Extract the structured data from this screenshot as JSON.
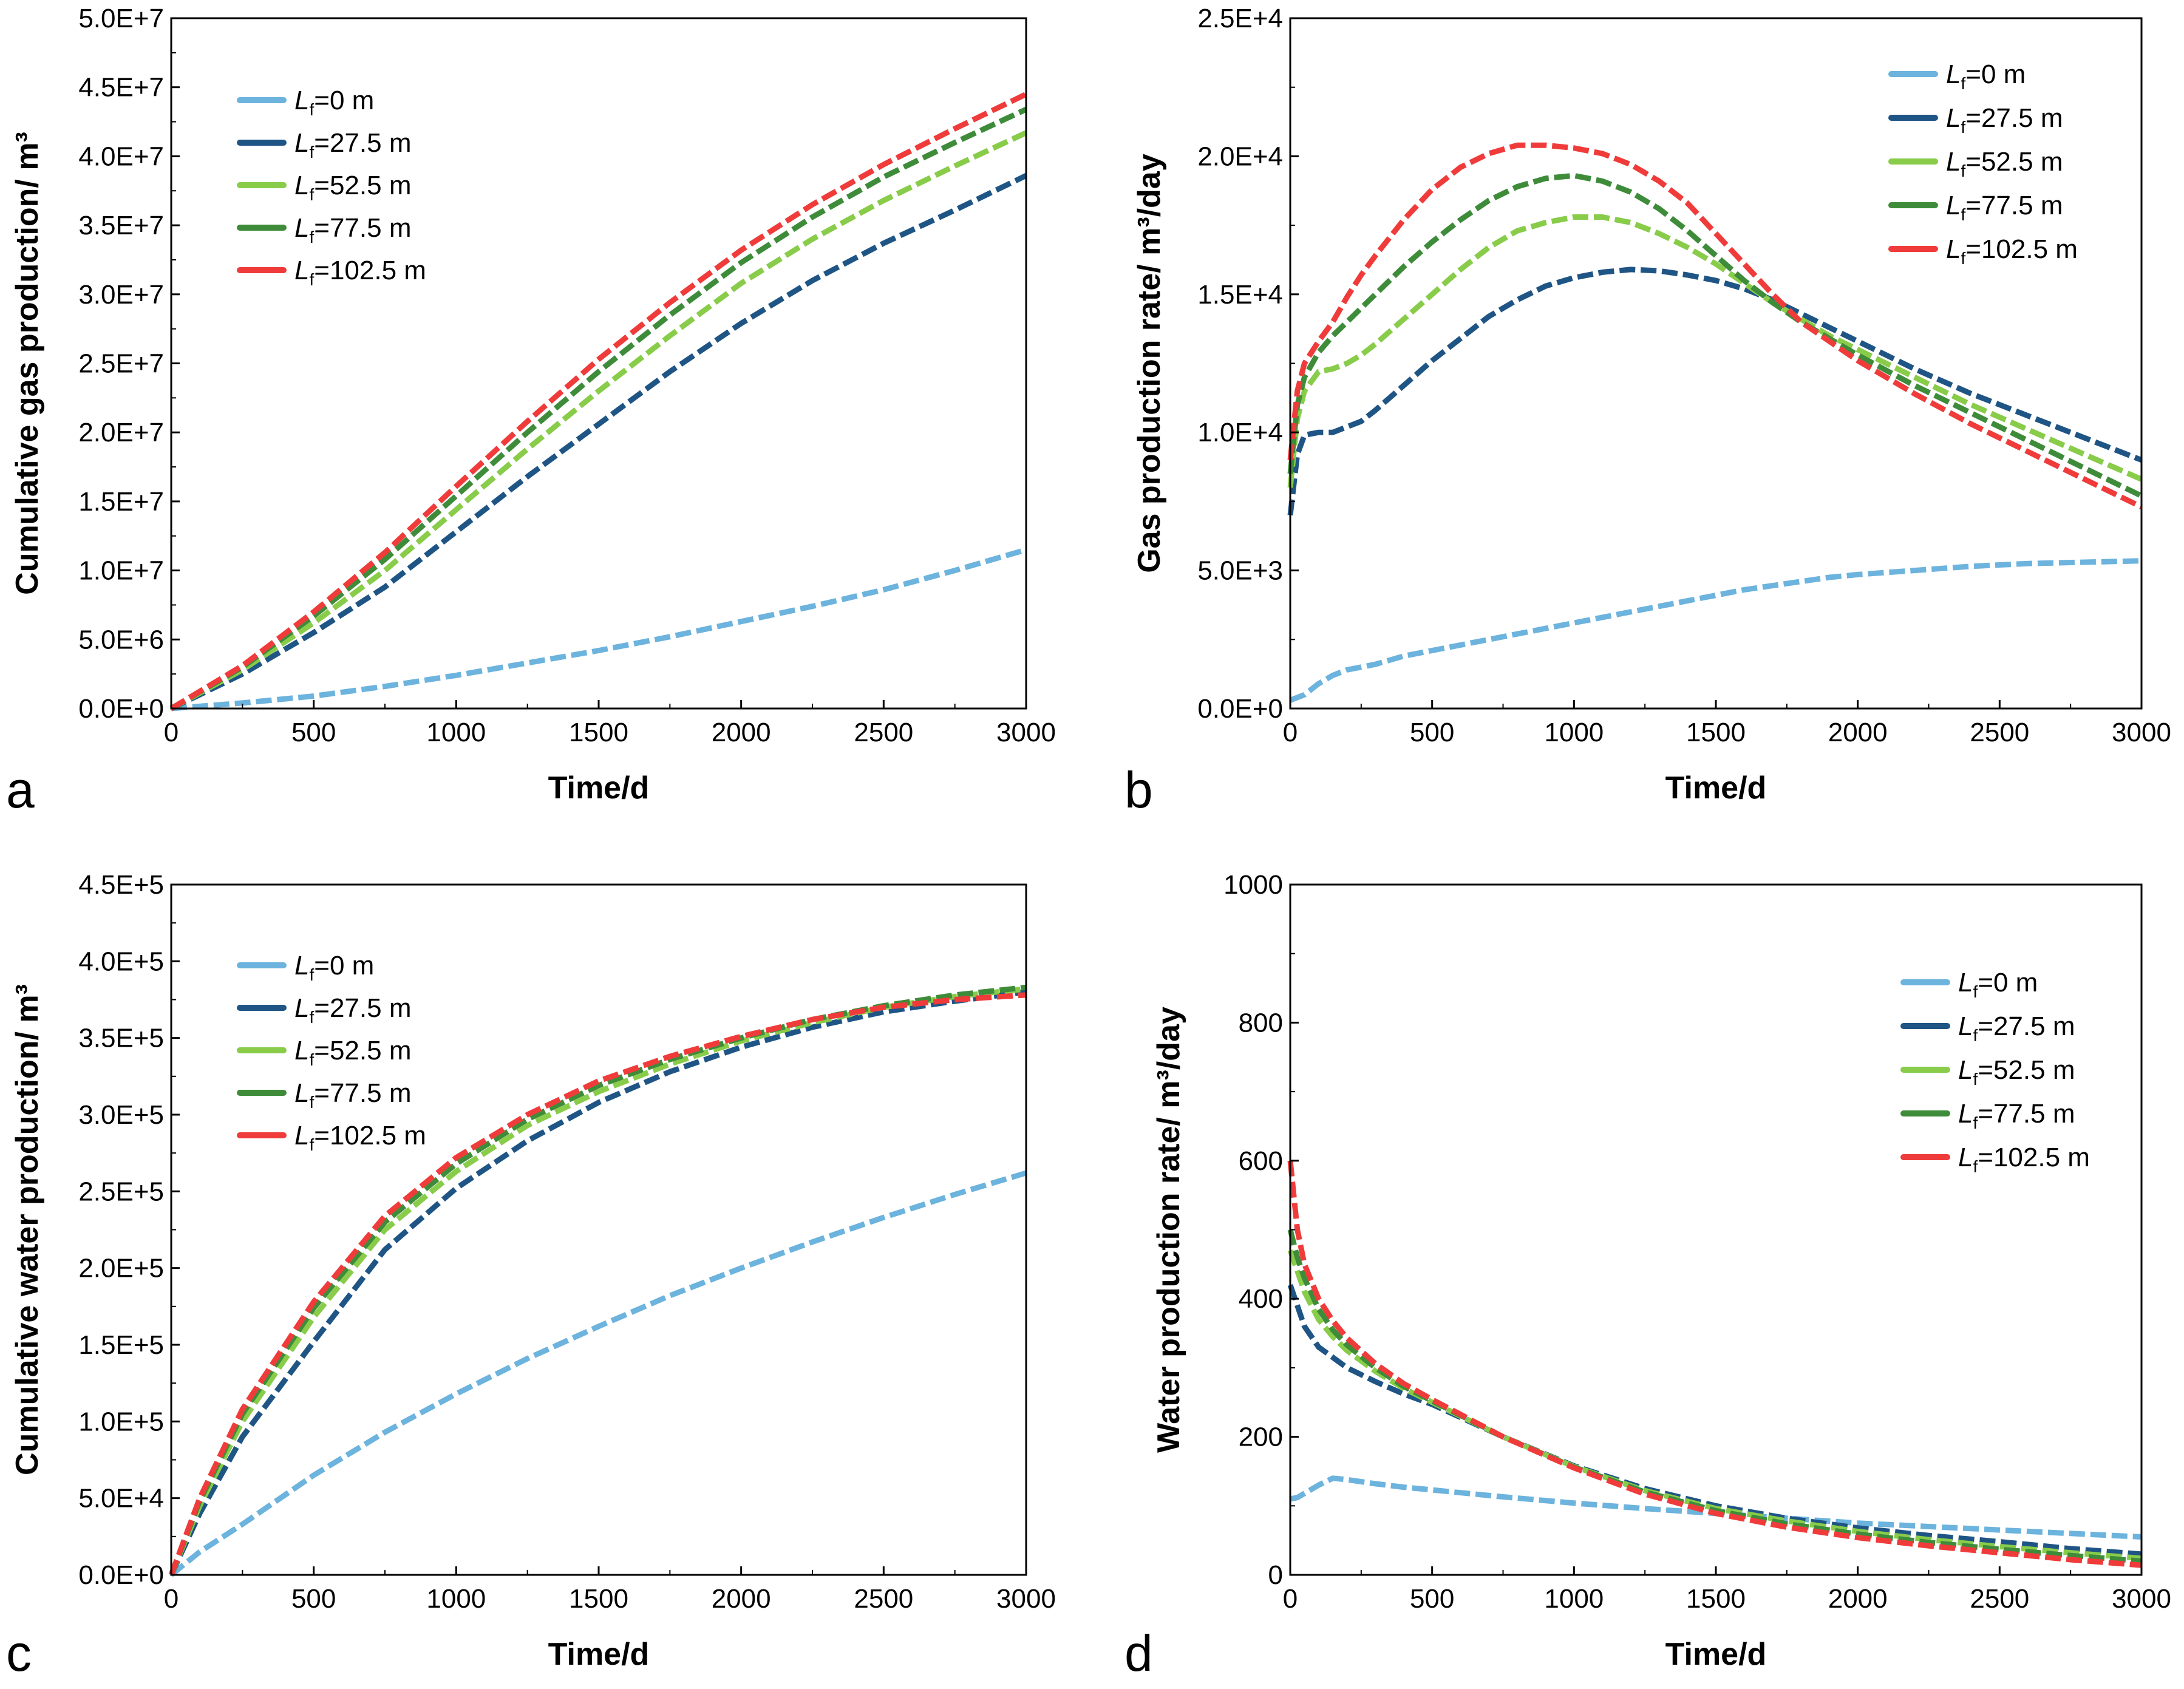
{
  "series_colors": [
    "#6cb3dd",
    "#1f5585",
    "#88cc4a",
    "#3e8c3a",
    "#f03b3b"
  ],
  "chart_data": [
    {
      "type": "line",
      "panel_label": "a",
      "xlabel": "Time/d",
      "ylabel": "Cumulative gas production/ m³",
      "xlim": [
        0,
        3000
      ],
      "ylim": [
        0,
        50000000
      ],
      "xticks": [
        0,
        500,
        1000,
        1500,
        2000,
        2500,
        3000
      ],
      "xtick_labels": [
        "0",
        "500",
        "1000",
        "1500",
        "2000",
        "2500",
        "3000"
      ],
      "yticks": [
        0,
        5000000,
        10000000,
        15000000,
        20000000,
        25000000,
        30000000,
        35000000,
        40000000,
        45000000,
        50000000
      ],
      "ytick_labels": [
        "0.0E+0",
        "5.0E+6",
        "1.0E+7",
        "1.5E+7",
        "2.0E+7",
        "2.5E+7",
        "3.0E+7",
        "3.5E+7",
        "4.0E+7",
        "4.5E+7",
        "5.0E+7"
      ],
      "legend_position": "top-left",
      "x": [
        0,
        250,
        500,
        750,
        1000,
        1250,
        1500,
        1750,
        2000,
        2250,
        2500,
        2750,
        3000
      ],
      "series": [
        {
          "name": "Lf=0 m",
          "legend_var": "L",
          "legend_sub": "f",
          "legend_rest": "=0 m",
          "values": [
            0,
            400000,
            900000,
            1600000,
            2400000,
            3300000,
            4200000,
            5200000,
            6300000,
            7400000,
            8600000,
            10000000,
            11500000
          ]
        },
        {
          "name": "Lf=27.5 m",
          "legend_var": "L",
          "legend_sub": "f",
          "legend_rest": "=27.5 m",
          "values": [
            0,
            2500000,
            5500000,
            8800000,
            12800000,
            16800000,
            20600000,
            24400000,
            27900000,
            31000000,
            33700000,
            36100000,
            38600000
          ]
        },
        {
          "name": "Lf=52.5 m",
          "legend_var": "L",
          "legend_sub": "f",
          "legend_rest": "=52.5 m",
          "values": [
            0,
            2800000,
            6200000,
            10000000,
            14400000,
            18800000,
            23000000,
            27000000,
            30800000,
            34000000,
            36800000,
            39300000,
            41700000
          ]
        },
        {
          "name": "Lf=77.5 m",
          "legend_var": "L",
          "legend_sub": "f",
          "legend_rest": "=77.5 m",
          "values": [
            0,
            3000000,
            6700000,
            10800000,
            15400000,
            20000000,
            24400000,
            28500000,
            32300000,
            35600000,
            38500000,
            41000000,
            43400000
          ]
        },
        {
          "name": "Lf=102.5 m",
          "legend_var": "L",
          "legend_sub": "f",
          "legend_rest": "=102.5 m",
          "values": [
            0,
            3100000,
            7000000,
            11300000,
            16100000,
            20800000,
            25300000,
            29400000,
            33200000,
            36500000,
            39400000,
            42000000,
            44500000
          ]
        }
      ]
    },
    {
      "type": "line",
      "panel_label": "b",
      "xlabel": "Time/d",
      "ylabel": "Gas production rate/ m³/day",
      "xlim": [
        0,
        3000
      ],
      "ylim": [
        0,
        25000
      ],
      "xticks": [
        0,
        500,
        1000,
        1500,
        2000,
        2500,
        3000
      ],
      "xtick_labels": [
        "0",
        "500",
        "1000",
        "1500",
        "2000",
        "2500",
        "3000"
      ],
      "yticks": [
        0,
        5000,
        10000,
        15000,
        20000,
        25000
      ],
      "ytick_labels": [
        "0.0E+0",
        "5.0E+3",
        "1.0E+4",
        "1.5E+4",
        "2.0E+4",
        "2.5E+4"
      ],
      "legend_position": "top-right",
      "x": [
        0,
        25,
        50,
        100,
        150,
        200,
        250,
        300,
        400,
        500,
        600,
        700,
        800,
        900,
        1000,
        1100,
        1200,
        1300,
        1400,
        1500,
        1600,
        1700,
        1800,
        1900,
        2000,
        2200,
        2400,
        2600,
        2800,
        3000
      ],
      "series": [
        {
          "name": "Lf=0 m",
          "legend_var": "L",
          "legend_sub": "f",
          "legend_rest": "=0 m",
          "values": [
            300,
            400,
            500,
            900,
            1200,
            1400,
            1500,
            1600,
            1900,
            2100,
            2300,
            2500,
            2700,
            2900,
            3100,
            3300,
            3500,
            3700,
            3900,
            4100,
            4300,
            4450,
            4600,
            4750,
            4850,
            5000,
            5150,
            5250,
            5300,
            5350
          ]
        },
        {
          "name": "Lf=27.5 m",
          "legend_var": "L",
          "legend_sub": "f",
          "legend_rest": "=27.5 m",
          "values": [
            7000,
            9200,
            9900,
            10000,
            10000,
            10200,
            10400,
            10800,
            11700,
            12600,
            13400,
            14200,
            14800,
            15300,
            15600,
            15800,
            15900,
            15850,
            15700,
            15500,
            15200,
            14800,
            14300,
            13800,
            13300,
            12300,
            11400,
            10600,
            9800,
            9000
          ]
        },
        {
          "name": "Lf=52.5 m",
          "legend_var": "L",
          "legend_sub": "f",
          "legend_rest": "=52.5 m",
          "values": [
            8000,
            10500,
            11500,
            12200,
            12300,
            12500,
            12800,
            13200,
            14100,
            15000,
            15900,
            16700,
            17300,
            17600,
            17800,
            17800,
            17600,
            17200,
            16700,
            16100,
            15400,
            14700,
            14100,
            13500,
            13000,
            12000,
            11000,
            10100,
            9200,
            8300
          ]
        },
        {
          "name": "Lf=77.5 m",
          "legend_var": "L",
          "legend_sub": "f",
          "legend_rest": "=77.5 m",
          "values": [
            8500,
            11000,
            12000,
            12900,
            13500,
            14000,
            14500,
            15000,
            16000,
            16900,
            17700,
            18400,
            18900,
            19200,
            19300,
            19100,
            18700,
            18100,
            17300,
            16400,
            15500,
            14700,
            14000,
            13400,
            12800,
            11700,
            10700,
            9700,
            8700,
            7700
          ]
        },
        {
          "name": "Lf=102.5 m",
          "legend_var": "L",
          "legend_sub": "f",
          "legend_rest": "=102.5 m",
          "values": [
            9000,
            11500,
            12500,
            13300,
            14000,
            14900,
            15700,
            16400,
            17700,
            18800,
            19600,
            20100,
            20400,
            20400,
            20300,
            20100,
            19700,
            19100,
            18300,
            17200,
            16100,
            15000,
            14000,
            13300,
            12600,
            11400,
            10300,
            9300,
            8300,
            7300
          ]
        }
      ]
    },
    {
      "type": "line",
      "panel_label": "c",
      "xlabel": "Time/d",
      "ylabel": "Cumulative water production/ m³",
      "xlim": [
        0,
        3000
      ],
      "ylim": [
        0,
        450000
      ],
      "xticks": [
        0,
        500,
        1000,
        1500,
        2000,
        2500,
        3000
      ],
      "xtick_labels": [
        "0",
        "500",
        "1000",
        "1500",
        "2000",
        "2500",
        "3000"
      ],
      "yticks": [
        0,
        50000,
        100000,
        150000,
        200000,
        250000,
        300000,
        350000,
        400000,
        450000
      ],
      "ytick_labels": [
        "0.0E+0",
        "5.0E+4",
        "1.0E+5",
        "1.5E+5",
        "2.0E+5",
        "2.5E+5",
        "3.0E+5",
        "3.5E+5",
        "4.0E+5",
        "4.5E+5"
      ],
      "legend_position": "top-left",
      "x": [
        0,
        100,
        250,
        500,
        750,
        1000,
        1250,
        1500,
        1750,
        2000,
        2250,
        2500,
        2750,
        3000
      ],
      "series": [
        {
          "name": "Lf=0 m",
          "legend_var": "L",
          "legend_sub": "f",
          "legend_rest": "=0 m",
          "values": [
            0,
            15000,
            33000,
            65000,
            93000,
            118000,
            141000,
            162000,
            182000,
            200000,
            217000,
            233000,
            248000,
            262000
          ]
        },
        {
          "name": "Lf=27.5 m",
          "legend_var": "L",
          "legend_sub": "f",
          "legend_rest": "=27.5 m",
          "values": [
            0,
            40000,
            90000,
            152000,
            212000,
            252000,
            283000,
            308000,
            328000,
            344000,
            357000,
            367000,
            374000,
            380000
          ]
        },
        {
          "name": "Lf=52.5 m",
          "legend_var": "L",
          "legend_sub": "f",
          "legend_rest": "=52.5 m",
          "values": [
            0,
            45000,
            100000,
            168000,
            225000,
            263000,
            293000,
            315000,
            333000,
            348000,
            360000,
            370000,
            377000,
            382000
          ]
        },
        {
          "name": "Lf=77.5 m",
          "legend_var": "L",
          "legend_sub": "f",
          "legend_rest": "=77.5 m",
          "values": [
            0,
            48000,
            105000,
            174000,
            230000,
            268000,
            297000,
            319000,
            336000,
            350000,
            362000,
            371000,
            378000,
            383000
          ]
        },
        {
          "name": "Lf=102.5 m",
          "legend_var": "L",
          "legend_sub": "f",
          "legend_rest": "=102.5 m",
          "values": [
            0,
            50000,
            108000,
            178000,
            234000,
            272000,
            300000,
            322000,
            338000,
            351000,
            362000,
            370000,
            375000,
            378000
          ]
        }
      ]
    },
    {
      "type": "line",
      "panel_label": "d",
      "xlabel": "Time/d",
      "ylabel": "Water production rate/ m³/day",
      "xlim": [
        0,
        3000
      ],
      "ylim": [
        0,
        1000
      ],
      "xticks": [
        0,
        500,
        1000,
        1500,
        2000,
        2500,
        3000
      ],
      "xtick_labels": [
        "0",
        "500",
        "1000",
        "1500",
        "2000",
        "2500",
        "3000"
      ],
      "yticks": [
        0,
        200,
        400,
        600,
        800,
        1000
      ],
      "ytick_labels": [
        "0",
        "200",
        "400",
        "600",
        "800",
        "1000"
      ],
      "legend_position": "top-right",
      "x": [
        0,
        25,
        50,
        100,
        150,
        200,
        300,
        400,
        500,
        750,
        1000,
        1250,
        1500,
        1750,
        2000,
        2250,
        2500,
        2750,
        3000
      ],
      "series": [
        {
          "name": "Lf=0 m",
          "legend_var": "L",
          "legend_sub": "f",
          "legend_rest": "=0 m",
          "values": [
            110,
            112,
            118,
            130,
            140,
            138,
            132,
            127,
            123,
            113,
            104,
            96,
            89,
            82,
            75,
            70,
            65,
            60,
            55
          ]
        },
        {
          "name": "Lf=27.5 m",
          "legend_var": "L",
          "legend_sub": "f",
          "legend_rest": "=27.5 m",
          "values": [
            420,
            390,
            360,
            330,
            315,
            300,
            280,
            262,
            247,
            200,
            158,
            125,
            100,
            82,
            68,
            57,
            48,
            38,
            30
          ]
        },
        {
          "name": "Lf=52.5 m",
          "legend_var": "L",
          "legend_sub": "f",
          "legend_rest": "=52.5 m",
          "values": [
            470,
            440,
            410,
            370,
            345,
            325,
            295,
            270,
            250,
            200,
            157,
            122,
            96,
            78,
            63,
            51,
            41,
            32,
            24
          ]
        },
        {
          "name": "Lf=77.5 m",
          "legend_var": "L",
          "legend_sub": "f",
          "legend_rest": "=77.5 m",
          "values": [
            500,
            460,
            430,
            385,
            355,
            333,
            300,
            273,
            252,
            200,
            156,
            120,
            93,
            74,
            59,
            47,
            37,
            28,
            20
          ]
        },
        {
          "name": "Lf=102.5 m",
          "legend_var": "L",
          "legend_sub": "f",
          "legend_rest": "=102.5 m",
          "values": [
            600,
            500,
            450,
            400,
            368,
            343,
            306,
            277,
            254,
            200,
            155,
            117,
            89,
            69,
            54,
            42,
            32,
            22,
            14
          ]
        }
      ]
    }
  ]
}
